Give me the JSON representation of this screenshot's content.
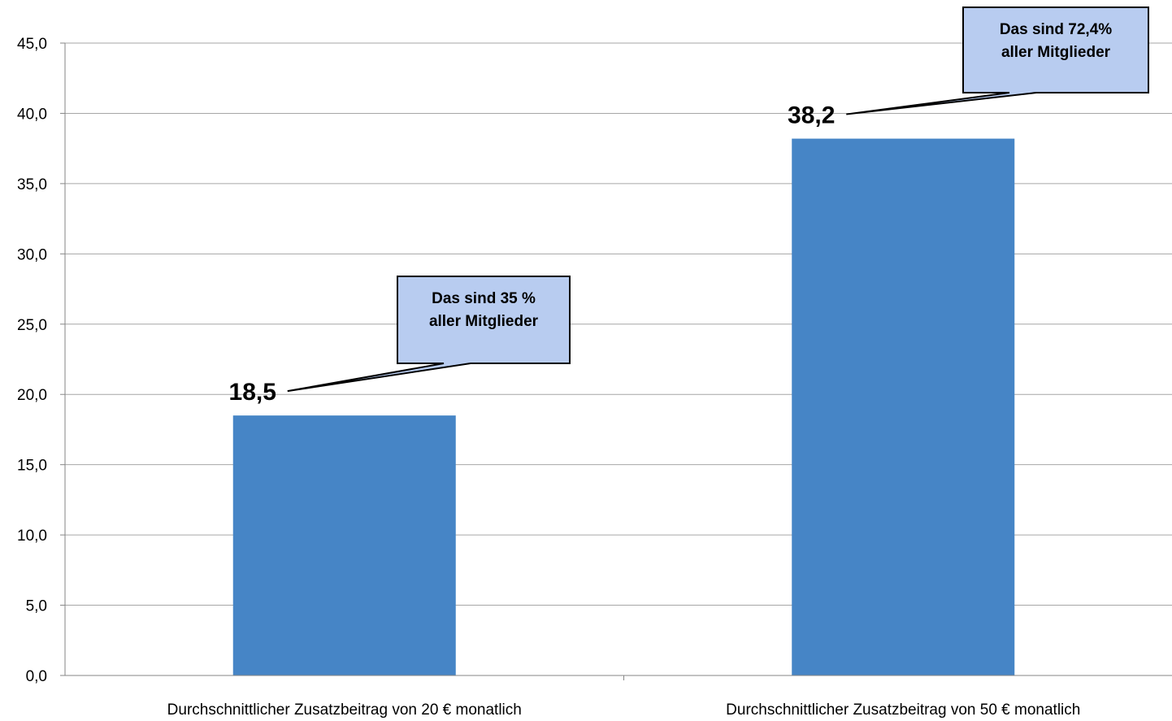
{
  "chart_data": {
    "type": "bar",
    "categories": [
      "Durchschnittlicher Zusatzbeitrag von 20 € monatlich",
      "Durchschnittlicher Zusatzbeitrag von 50 € monatlich"
    ],
    "values": [
      18.5,
      38.2
    ],
    "value_labels": [
      "18,5",
      "38,2"
    ],
    "ylim": [
      0,
      45
    ],
    "y_ticks": [
      0,
      5,
      10,
      15,
      20,
      25,
      30,
      35,
      40,
      45
    ],
    "y_tick_labels": [
      "0,0",
      "5,0",
      "10,0",
      "15,0",
      "20,0",
      "25,0",
      "30,0",
      "35,0",
      "40,0",
      "45,0"
    ],
    "grid": true,
    "legend": "none",
    "bar_color": "#4685C6",
    "annotations": [
      {
        "target": 0,
        "lines": [
          "Das sind 35 %",
          "aller Mitglieder"
        ]
      },
      {
        "target": 1,
        "lines": [
          "Das sind 72,4%",
          "aller Mitglieder"
        ]
      }
    ],
    "callout_fill": "#B8CCF0",
    "gridline_color": "#A6A6A6"
  }
}
